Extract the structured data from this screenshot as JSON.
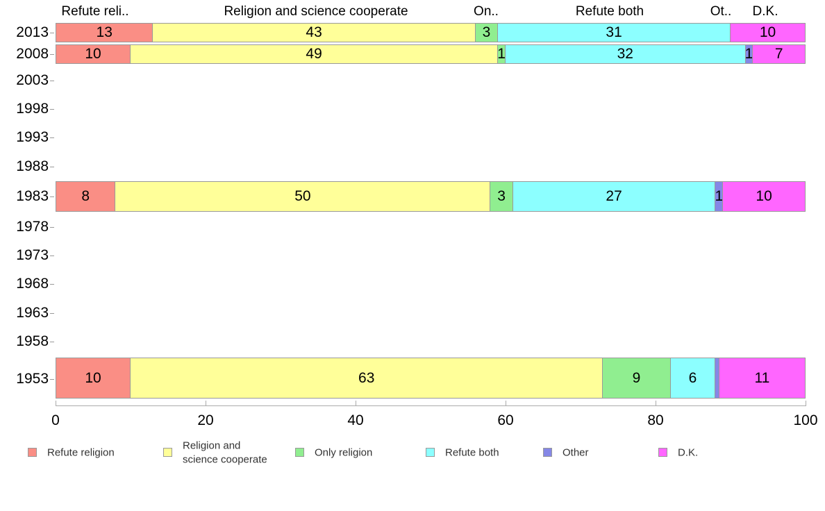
{
  "chart_data": {
    "type": "bar",
    "orientation": "horizontal",
    "stacked": true,
    "title": "",
    "xlabel": "",
    "ylabel": "",
    "xlim": [
      0,
      100
    ],
    "x_ticks": [
      0,
      20,
      40,
      60,
      80,
      100
    ],
    "grid": false,
    "legend_position": "bottom",
    "categories": [
      "2013",
      "2008",
      "2003",
      "1998",
      "1993",
      "1988",
      "1983",
      "1978",
      "1973",
      "1968",
      "1963",
      "1958",
      "1953"
    ],
    "series": [
      {
        "name": "Refute religion",
        "color": "#fa8e85",
        "values": [
          13,
          10,
          null,
          null,
          null,
          null,
          8,
          null,
          null,
          null,
          null,
          null,
          10
        ]
      },
      {
        "name": "Religion and science cooperate",
        "color": "#ffff99",
        "values": [
          43,
          49,
          null,
          null,
          null,
          null,
          50,
          null,
          null,
          null,
          null,
          null,
          63
        ]
      },
      {
        "name": "Only religion",
        "color": "#90ee90",
        "values": [
          3,
          1,
          null,
          null,
          null,
          null,
          3,
          null,
          null,
          null,
          null,
          null,
          9
        ]
      },
      {
        "name": "Refute both",
        "color": "#8cffff",
        "values": [
          31,
          32,
          null,
          null,
          null,
          null,
          27,
          null,
          null,
          null,
          null,
          null,
          6
        ]
      },
      {
        "name": "Other",
        "color": "#8587e6",
        "values": [
          0,
          1,
          null,
          null,
          null,
          null,
          1,
          null,
          null,
          null,
          null,
          null,
          0.5
        ]
      },
      {
        "name": "D.K.",
        "color": "#ff66ff",
        "values": [
          10,
          7,
          null,
          null,
          null,
          null,
          10,
          null,
          null,
          null,
          null,
          null,
          11
        ]
      }
    ],
    "column_headers": [
      "Refute reli..",
      "Religion and science cooperate",
      "On..",
      "Refute both",
      "Ot..",
      "D.K."
    ],
    "legend": [
      "Refute religion",
      "Religion and science cooperate",
      "Only religion",
      "Refute both",
      "Other",
      "D.K."
    ],
    "axis_colors": {
      "line": "#aaaaaa",
      "tick": "#999999",
      "segment_border": "#999999"
    }
  }
}
